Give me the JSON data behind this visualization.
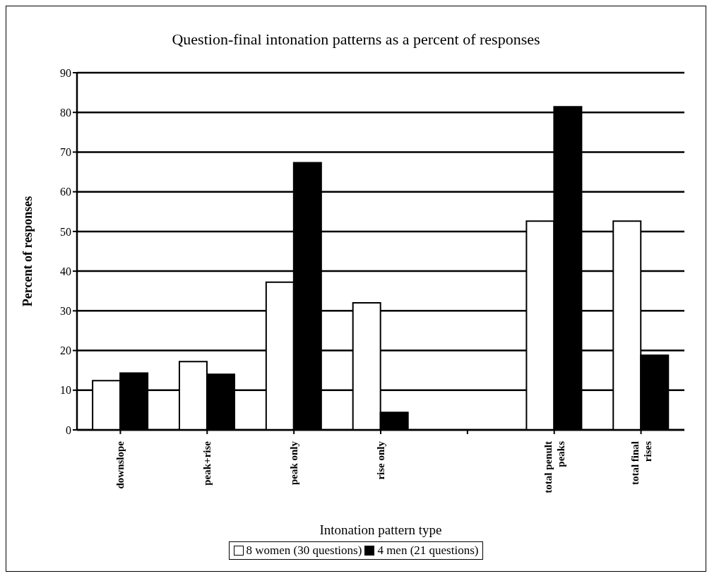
{
  "chart_data": {
    "type": "bar",
    "title": "Question-final intonation patterns as a percent of responses",
    "xlabel": "Intonation pattern type",
    "ylabel": "Percent of responses",
    "categories": [
      "downslope",
      "peak+rise",
      "peak only",
      "rise only",
      null,
      "total penult peaks",
      "total final rises"
    ],
    "series": [
      {
        "name": "8 women (30 questions)",
        "color": "#ffffff",
        "values": [
          12.4,
          17.2,
          37.2,
          32.0,
          null,
          52.6,
          52.6
        ]
      },
      {
        "name": "4 men (21 questions)",
        "color": "#000000",
        "values": [
          14.3,
          14.0,
          67.3,
          4.4,
          null,
          81.4,
          18.8
        ]
      }
    ],
    "ylim": [
      0,
      90
    ],
    "yticks": [
      0,
      10,
      20,
      30,
      40,
      50,
      60,
      70,
      80,
      90
    ],
    "grid": "y",
    "legend": "bottom"
  }
}
